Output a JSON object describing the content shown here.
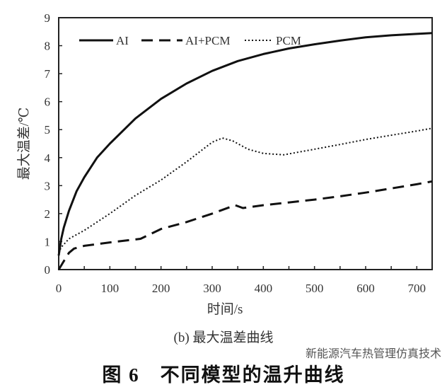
{
  "chart_data": {
    "type": "line",
    "xlabel": "时间/s",
    "ylabel": "最大温差/℃",
    "xlim": [
      0,
      730
    ],
    "ylim": [
      0,
      9
    ],
    "xticks": [
      0,
      100,
      200,
      300,
      400,
      500,
      600,
      700
    ],
    "yticks": [
      0,
      1,
      2,
      3,
      4,
      5,
      6,
      7,
      8,
      9
    ],
    "grid": false,
    "legend_position": "top",
    "series": [
      {
        "name": "AI",
        "style": "solid",
        "x": [
          0,
          5,
          10,
          20,
          35,
          50,
          75,
          100,
          150,
          200,
          250,
          300,
          350,
          400,
          450,
          500,
          550,
          600,
          650,
          700,
          730
        ],
        "y": [
          0.5,
          1.1,
          1.5,
          2.1,
          2.8,
          3.3,
          4.0,
          4.5,
          5.4,
          6.1,
          6.65,
          7.1,
          7.45,
          7.7,
          7.9,
          8.05,
          8.18,
          8.3,
          8.37,
          8.42,
          8.45
        ]
      },
      {
        "name": "AI+PCM",
        "style": "dashed",
        "x": [
          0,
          10,
          20,
          30,
          50,
          100,
          160,
          200,
          250,
          300,
          345,
          360,
          400,
          450,
          500,
          550,
          600,
          650,
          700,
          730
        ],
        "y": [
          0,
          0.3,
          0.6,
          0.75,
          0.85,
          0.97,
          1.1,
          1.45,
          1.7,
          2.0,
          2.3,
          2.2,
          2.3,
          2.4,
          2.5,
          2.62,
          2.75,
          2.9,
          3.05,
          3.15
        ]
      },
      {
        "name": "PCM",
        "style": "dotted",
        "x": [
          0,
          5,
          20,
          50,
          100,
          150,
          200,
          250,
          300,
          320,
          340,
          370,
          400,
          440,
          500,
          550,
          600,
          650,
          700,
          730
        ],
        "y": [
          0.6,
          0.8,
          1.1,
          1.4,
          2.0,
          2.65,
          3.2,
          3.85,
          4.55,
          4.7,
          4.6,
          4.3,
          4.15,
          4.1,
          4.3,
          4.47,
          4.65,
          4.8,
          4.95,
          5.05
        ]
      }
    ]
  },
  "subtitle": "(b) 最大温差曲线",
  "figure_caption": "图 6　不同模型的温升曲线",
  "watermark": "新能源汽车热管理仿真技术"
}
